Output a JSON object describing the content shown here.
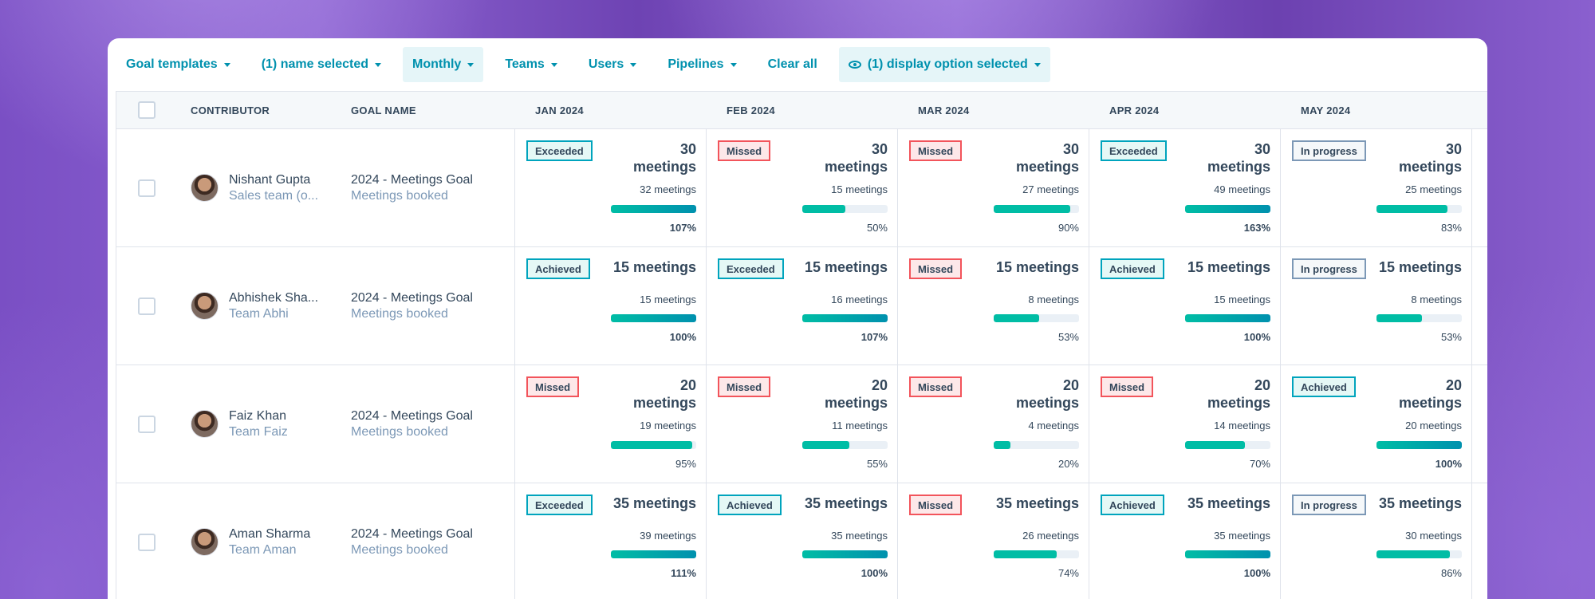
{
  "toolbar": {
    "filters": [
      {
        "label": "Goal templates",
        "active": false
      },
      {
        "label": "(1) name selected",
        "active": false
      },
      {
        "label": "Monthly",
        "active": true
      },
      {
        "label": "Teams",
        "active": false
      },
      {
        "label": "Users",
        "active": false
      },
      {
        "label": "Pipelines",
        "active": false
      }
    ],
    "clear_all": "Clear all",
    "display_option": "(1) display option selected"
  },
  "table": {
    "headers": {
      "contributor": "CONTRIBUTOR",
      "goal_name": "GOAL NAME",
      "months": [
        "JAN 2024",
        "FEB 2024",
        "MAR 2024",
        "APR 2024",
        "MAY 2024"
      ]
    },
    "rows": [
      {
        "name": "Nishant Gupta",
        "team": "Sales team (o...",
        "goal": "2024 - Meetings Goal",
        "goal_type": "Meetings booked",
        "months": [
          {
            "status": "Exceeded",
            "target": "30 meetings",
            "actual": "32 meetings",
            "percent": "107%",
            "progress": 1.0
          },
          {
            "status": "Missed",
            "target": "30 meetings",
            "actual": "15 meetings",
            "percent": "50%",
            "progress": 0.5
          },
          {
            "status": "Missed",
            "target": "30 meetings",
            "actual": "27 meetings",
            "percent": "90%",
            "progress": 0.9
          },
          {
            "status": "Exceeded",
            "target": "30 meetings",
            "actual": "49 meetings",
            "percent": "163%",
            "progress": 1.0
          },
          {
            "status": "In progress",
            "target": "30 meetings",
            "actual": "25 meetings",
            "percent": "83%",
            "progress": 0.83
          }
        ]
      },
      {
        "name": "Abhishek Sha...",
        "team": "Team Abhi",
        "goal": "2024 - Meetings Goal",
        "goal_type": "Meetings booked",
        "months": [
          {
            "status": "Achieved",
            "target": "15 meetings",
            "actual": "15 meetings",
            "percent": "100%",
            "progress": 1.0
          },
          {
            "status": "Exceeded",
            "target": "15 meetings",
            "actual": "16 meetings",
            "percent": "107%",
            "progress": 1.0
          },
          {
            "status": "Missed",
            "target": "15 meetings",
            "actual": "8 meetings",
            "percent": "53%",
            "progress": 0.53
          },
          {
            "status": "Achieved",
            "target": "15 meetings",
            "actual": "15 meetings",
            "percent": "100%",
            "progress": 1.0
          },
          {
            "status": "In progress",
            "target": "15 meetings",
            "actual": "8 meetings",
            "percent": "53%",
            "progress": 0.53
          }
        ]
      },
      {
        "name": "Faiz Khan",
        "team": "Team Faiz",
        "goal": "2024 - Meetings Goal",
        "goal_type": "Meetings booked",
        "months": [
          {
            "status": "Missed",
            "target": "20 meetings",
            "actual": "19 meetings",
            "percent": "95%",
            "progress": 0.95
          },
          {
            "status": "Missed",
            "target": "20 meetings",
            "actual": "11 meetings",
            "percent": "55%",
            "progress": 0.55
          },
          {
            "status": "Missed",
            "target": "20 meetings",
            "actual": "4 meetings",
            "percent": "20%",
            "progress": 0.2
          },
          {
            "status": "Missed",
            "target": "20 meetings",
            "actual": "14 meetings",
            "percent": "70%",
            "progress": 0.7
          },
          {
            "status": "Achieved",
            "target": "20 meetings",
            "actual": "20 meetings",
            "percent": "100%",
            "progress": 1.0
          }
        ]
      },
      {
        "name": "Aman Sharma",
        "team": "Team Aman",
        "goal": "2024 - Meetings Goal",
        "goal_type": "Meetings booked",
        "months": [
          {
            "status": "Exceeded",
            "target": "35 meetings",
            "actual": "39 meetings",
            "percent": "111%",
            "progress": 1.0
          },
          {
            "status": "Achieved",
            "target": "35 meetings",
            "actual": "35 meetings",
            "percent": "100%",
            "progress": 1.0
          },
          {
            "status": "Missed",
            "target": "35 meetings",
            "actual": "26 meetings",
            "percent": "74%",
            "progress": 0.74
          },
          {
            "status": "Achieved",
            "target": "35 meetings",
            "actual": "35 meetings",
            "percent": "100%",
            "progress": 1.0
          },
          {
            "status": "In progress",
            "target": "35 meetings",
            "actual": "30 meetings",
            "percent": "86%",
            "progress": 0.86
          }
        ]
      }
    ]
  }
}
